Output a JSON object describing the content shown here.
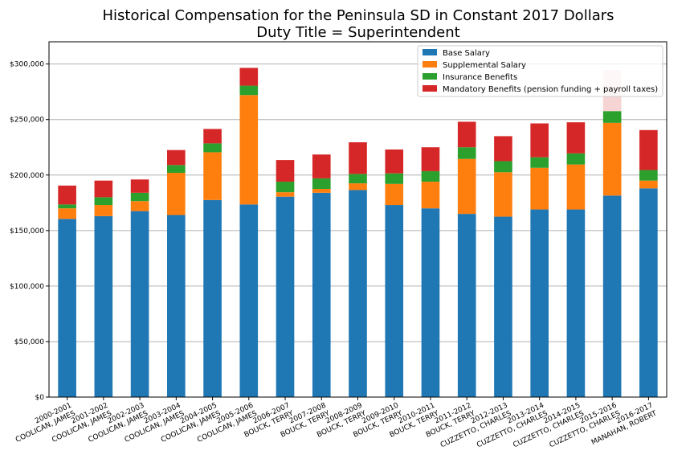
{
  "chart_data": {
    "type": "bar",
    "stacked": true,
    "title": "Historical Compensation for the Peninsula SD in Constant 2017 Dollars",
    "subtitle": "Duty Title = Superintendent",
    "xlabel": "",
    "ylabel": "",
    "ylim": [
      0,
      320000
    ],
    "yticks": [
      "$0",
      "$50,000",
      "$100,000",
      "$150,000",
      "$200,000",
      "$250,000",
      "$300,000"
    ],
    "ytick_values": [
      0,
      50000,
      100000,
      150000,
      200000,
      250000,
      300000
    ],
    "grid": "horizontal",
    "legend_position": "top-right",
    "categories": [
      [
        "2000-2001",
        "COOLICAN, JAMES"
      ],
      [
        "2001-2002",
        "COOLICAN, JAMES"
      ],
      [
        "2002-2003",
        "COOLICAN, JAMES"
      ],
      [
        "2003-2004",
        "COOLICAN, JAMES"
      ],
      [
        "2004-2005",
        "COOLICAN, JAMES"
      ],
      [
        "2005-2006",
        "COOLICAN, JAMES"
      ],
      [
        "2006-2007",
        "BOUCK, TERRY"
      ],
      [
        "2007-2008",
        "BOUCK, TERRY"
      ],
      [
        "2008-2009",
        "BOUCK, TERRY"
      ],
      [
        "2009-2010",
        "BOUCK, TERRY"
      ],
      [
        "2010-2011",
        "BOUCK, TERRY"
      ],
      [
        "2011-2012",
        "BOUCK, TERRY"
      ],
      [
        "2012-2013",
        "CUZZETTO, CHARLES"
      ],
      [
        "2013-2014",
        "CUZZETTO, CHARLES"
      ],
      [
        "2014-2015",
        "CUZZETTO, CHARLES"
      ],
      [
        "2015-2016",
        "CUZZETTO, CHARLES"
      ],
      [
        "2016-2017",
        "MANAHAN, ROBERT"
      ]
    ],
    "series": [
      {
        "name": "Base Salary",
        "color": "#1f77b4",
        "values": [
          160500,
          163000,
          167500,
          164000,
          177500,
          173500,
          180500,
          184000,
          186500,
          173000,
          170000,
          165000,
          162500,
          169000,
          169000,
          181500,
          188000
        ]
      },
      {
        "name": "Supplemental Salary",
        "color": "#ff7f0e",
        "values": [
          9500,
          10000,
          9000,
          38000,
          43000,
          98500,
          4000,
          3500,
          6000,
          19000,
          24000,
          49500,
          40000,
          37500,
          40500,
          65500,
          7000
        ]
      },
      {
        "name": "Insurance Benefits",
        "color": "#2ca02c",
        "values": [
          3500,
          7000,
          7500,
          7000,
          8000,
          8500,
          9500,
          9500,
          8500,
          9500,
          9500,
          10500,
          10000,
          9500,
          10000,
          10500,
          9500
        ]
      },
      {
        "name": "Mandatory Benefits (pension funding + payroll taxes)",
        "color": "#d62728",
        "values": [
          17000,
          15000,
          12000,
          13500,
          13000,
          16000,
          19500,
          21500,
          28500,
          21500,
          21500,
          23000,
          22500,
          30500,
          28000,
          37000,
          36000
        ]
      }
    ]
  }
}
